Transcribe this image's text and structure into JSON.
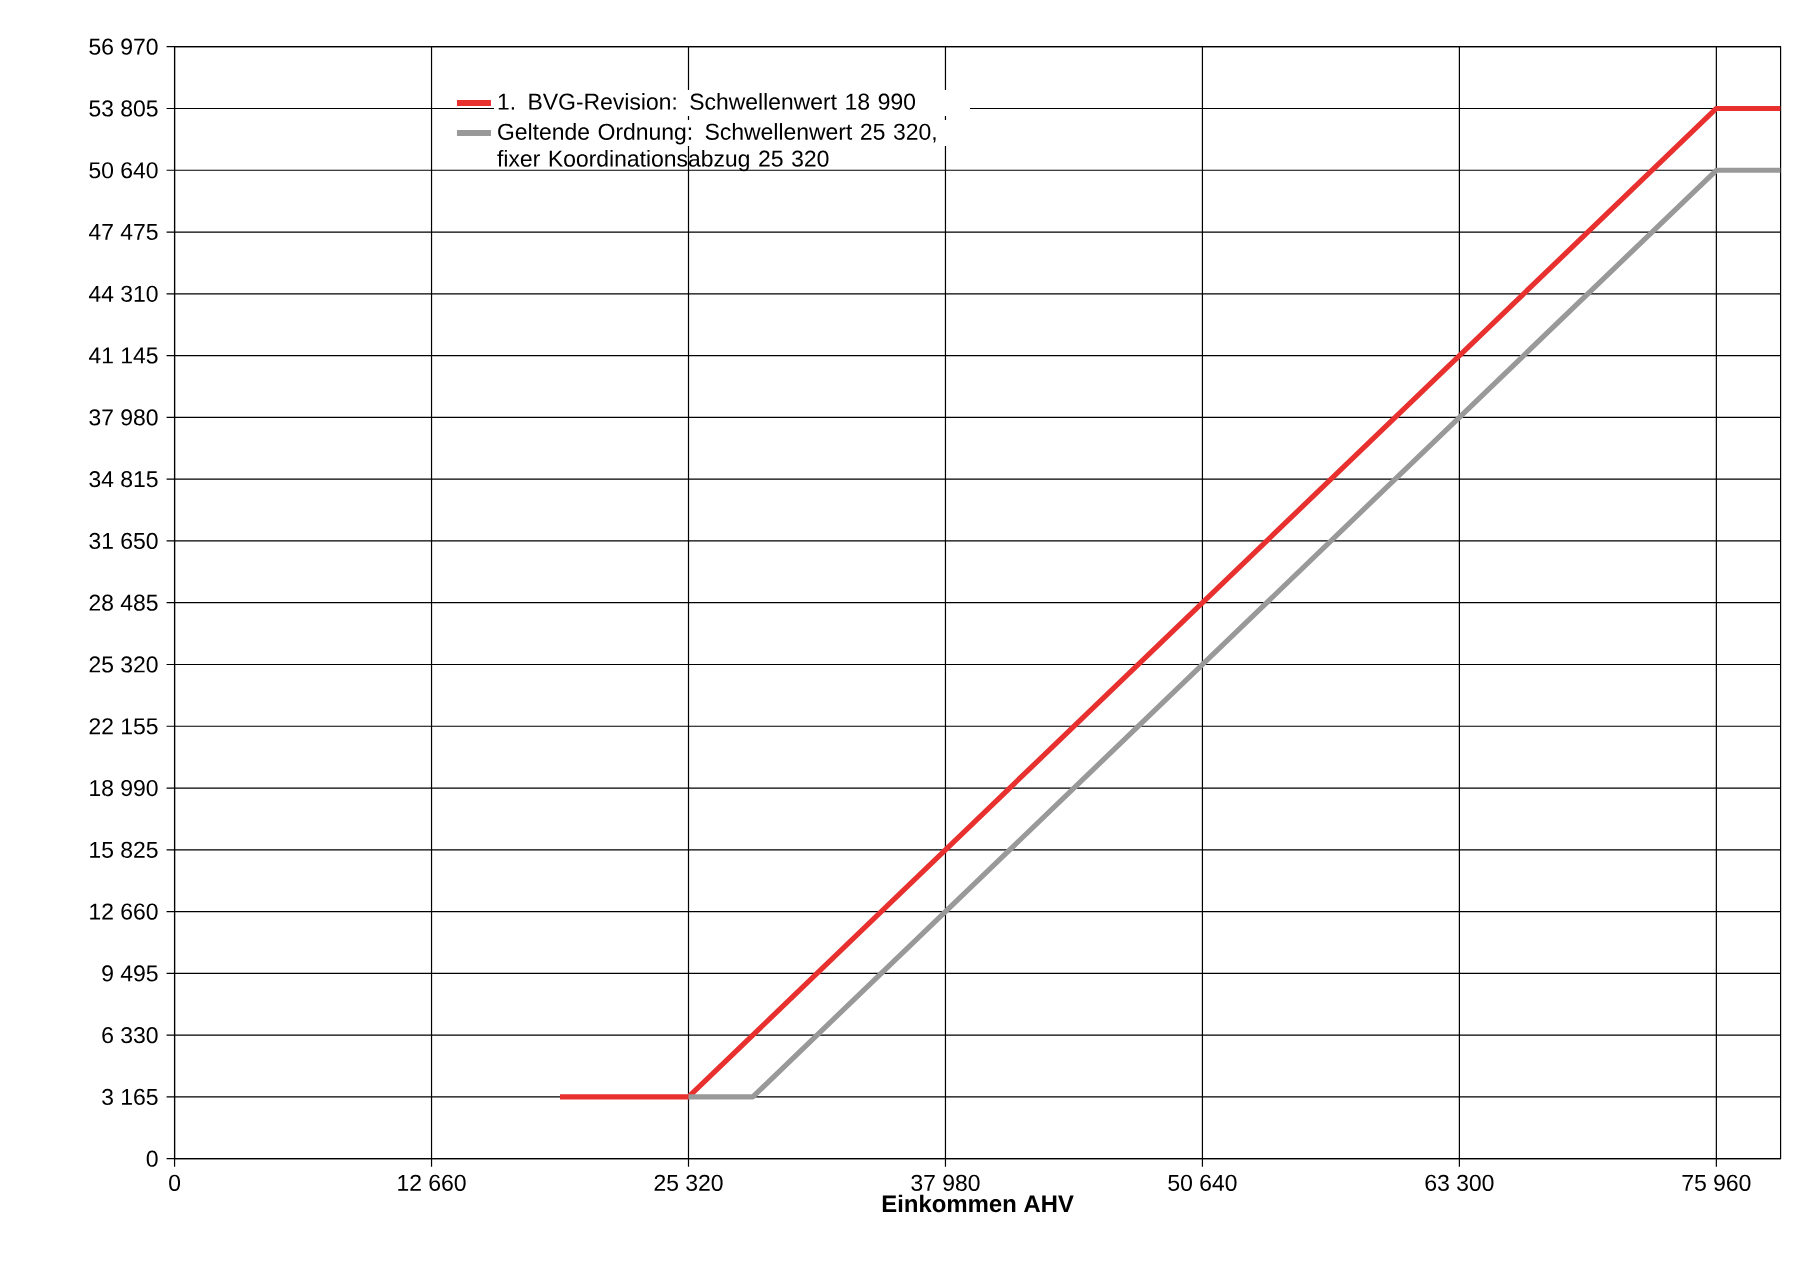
{
  "chart_data": {
    "type": "line",
    "xlabel": "Einkommen AHV",
    "xlim": [
      0,
      79125
    ],
    "ylim": [
      0,
      56970
    ],
    "xticks": [
      0,
      {
        "value": 12660,
        "label": "12 660"
      },
      {
        "value": 25320,
        "label": "25 320"
      },
      {
        "value": 37980,
        "label": "37 980"
      },
      {
        "value": 50640,
        "label": "50 640"
      },
      {
        "value": 63300,
        "label": "63 300"
      },
      {
        "value": 75960,
        "label": "75 960"
      }
    ],
    "yticks": [
      0,
      {
        "value": 3165,
        "label": "3 165"
      },
      {
        "value": 6330,
        "label": "6 330"
      },
      {
        "value": 9495,
        "label": "9 495"
      },
      {
        "value": 12660,
        "label": "12 660"
      },
      {
        "value": 15825,
        "label": "15 825"
      },
      {
        "value": 18990,
        "label": "18 990"
      },
      {
        "value": 22155,
        "label": "22 155"
      },
      {
        "value": 25320,
        "label": "25 320"
      },
      {
        "value": 28485,
        "label": "28 485"
      },
      {
        "value": 31650,
        "label": "31 650"
      },
      {
        "value": 34815,
        "label": "34 815"
      },
      {
        "value": 37980,
        "label": "37 980"
      },
      {
        "value": 41145,
        "label": "41 145"
      },
      {
        "value": 44310,
        "label": "44 310"
      },
      {
        "value": 47475,
        "label": "47 475"
      },
      {
        "value": 50640,
        "label": "50 640"
      },
      {
        "value": 53805,
        "label": "53 805"
      },
      {
        "value": 56970,
        "label": "56 970"
      }
    ],
    "grid": true,
    "legend": "top left",
    "marker": "none",
    "line_style": "solid",
    "series": [
      {
        "name": "1. BVG-Revision: Schwellenwert 18 990",
        "color": "#e8312f",
        "x": [
          18990,
          25320,
          75960,
          79125
        ],
        "values": [
          3165,
          3165,
          53805,
          53805
        ]
      },
      {
        "name": "Geltende Ordnung: Schwellenwert 25 320, fixer Koordinationsabzug 25 320",
        "color": "#999999",
        "x": [
          25320,
          28485,
          75960,
          79125
        ],
        "values": [
          3165,
          3165,
          50640,
          50640
        ]
      }
    ]
  }
}
